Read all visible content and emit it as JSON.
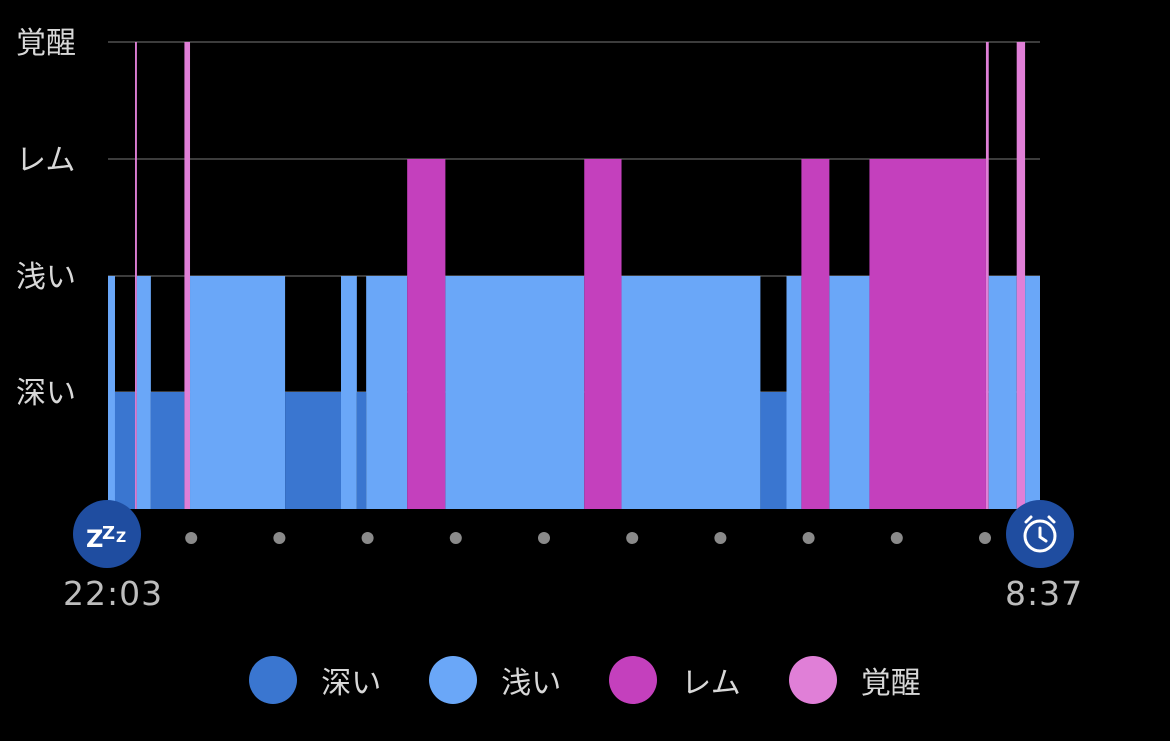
{
  "chart_data": {
    "type": "timeline",
    "levels": [
      "深い",
      "浅い",
      "レム",
      "覚醒"
    ],
    "colors": {
      "深い": "#3a76d0",
      "浅い": "#6aa7f8",
      "レム": "#c440bd",
      "覚醒": "#e07fd7"
    },
    "start_time": "22:03",
    "end_time": "8:37",
    "segments": [
      {
        "stage": "浅い",
        "start": 0.0,
        "end": 0.0075
      },
      {
        "stage": "深い",
        "start": 0.0075,
        "end": 0.029
      },
      {
        "stage": "覚醒",
        "start": 0.029,
        "end": 0.031
      },
      {
        "stage": "浅い",
        "start": 0.031,
        "end": 0.046
      },
      {
        "stage": "深い",
        "start": 0.046,
        "end": 0.082
      },
      {
        "stage": "覚醒",
        "start": 0.082,
        "end": 0.088
      },
      {
        "stage": "浅い",
        "start": 0.088,
        "end": 0.19
      },
      {
        "stage": "深い",
        "start": 0.19,
        "end": 0.25
      },
      {
        "stage": "浅い",
        "start": 0.25,
        "end": 0.267
      },
      {
        "stage": "深い",
        "start": 0.267,
        "end": 0.277
      },
      {
        "stage": "浅い",
        "start": 0.277,
        "end": 0.321
      },
      {
        "stage": "レム",
        "start": 0.321,
        "end": 0.362
      },
      {
        "stage": "浅い",
        "start": 0.362,
        "end": 0.511
      },
      {
        "stage": "レム",
        "start": 0.511,
        "end": 0.551
      },
      {
        "stage": "浅い",
        "start": 0.551,
        "end": 0.7
      },
      {
        "stage": "深い",
        "start": 0.7,
        "end": 0.728
      },
      {
        "stage": "浅い",
        "start": 0.728,
        "end": 0.744
      },
      {
        "stage": "レム",
        "start": 0.744,
        "end": 0.774
      },
      {
        "stage": "浅い",
        "start": 0.774,
        "end": 0.817
      },
      {
        "stage": "レム",
        "start": 0.817,
        "end": 0.942
      },
      {
        "stage": "覚醒",
        "start": 0.942,
        "end": 0.945
      },
      {
        "stage": "浅い",
        "start": 0.945,
        "end": 0.975
      },
      {
        "stage": "覚醒",
        "start": 0.975,
        "end": 0.984
      },
      {
        "stage": "浅い",
        "start": 0.984,
        "end": 1.0
      }
    ]
  },
  "legend": [
    {
      "label": "深い",
      "color": "#3a76d0"
    },
    {
      "label": "浅い",
      "color": "#6aa7f8"
    },
    {
      "label": "レム",
      "color": "#c440bd"
    },
    {
      "label": "覚醒",
      "color": "#e07fd7"
    }
  ],
  "icons": {
    "start": "zzz-icon",
    "end": "alarm-clock-icon"
  },
  "marker_color": "#1f4da0"
}
